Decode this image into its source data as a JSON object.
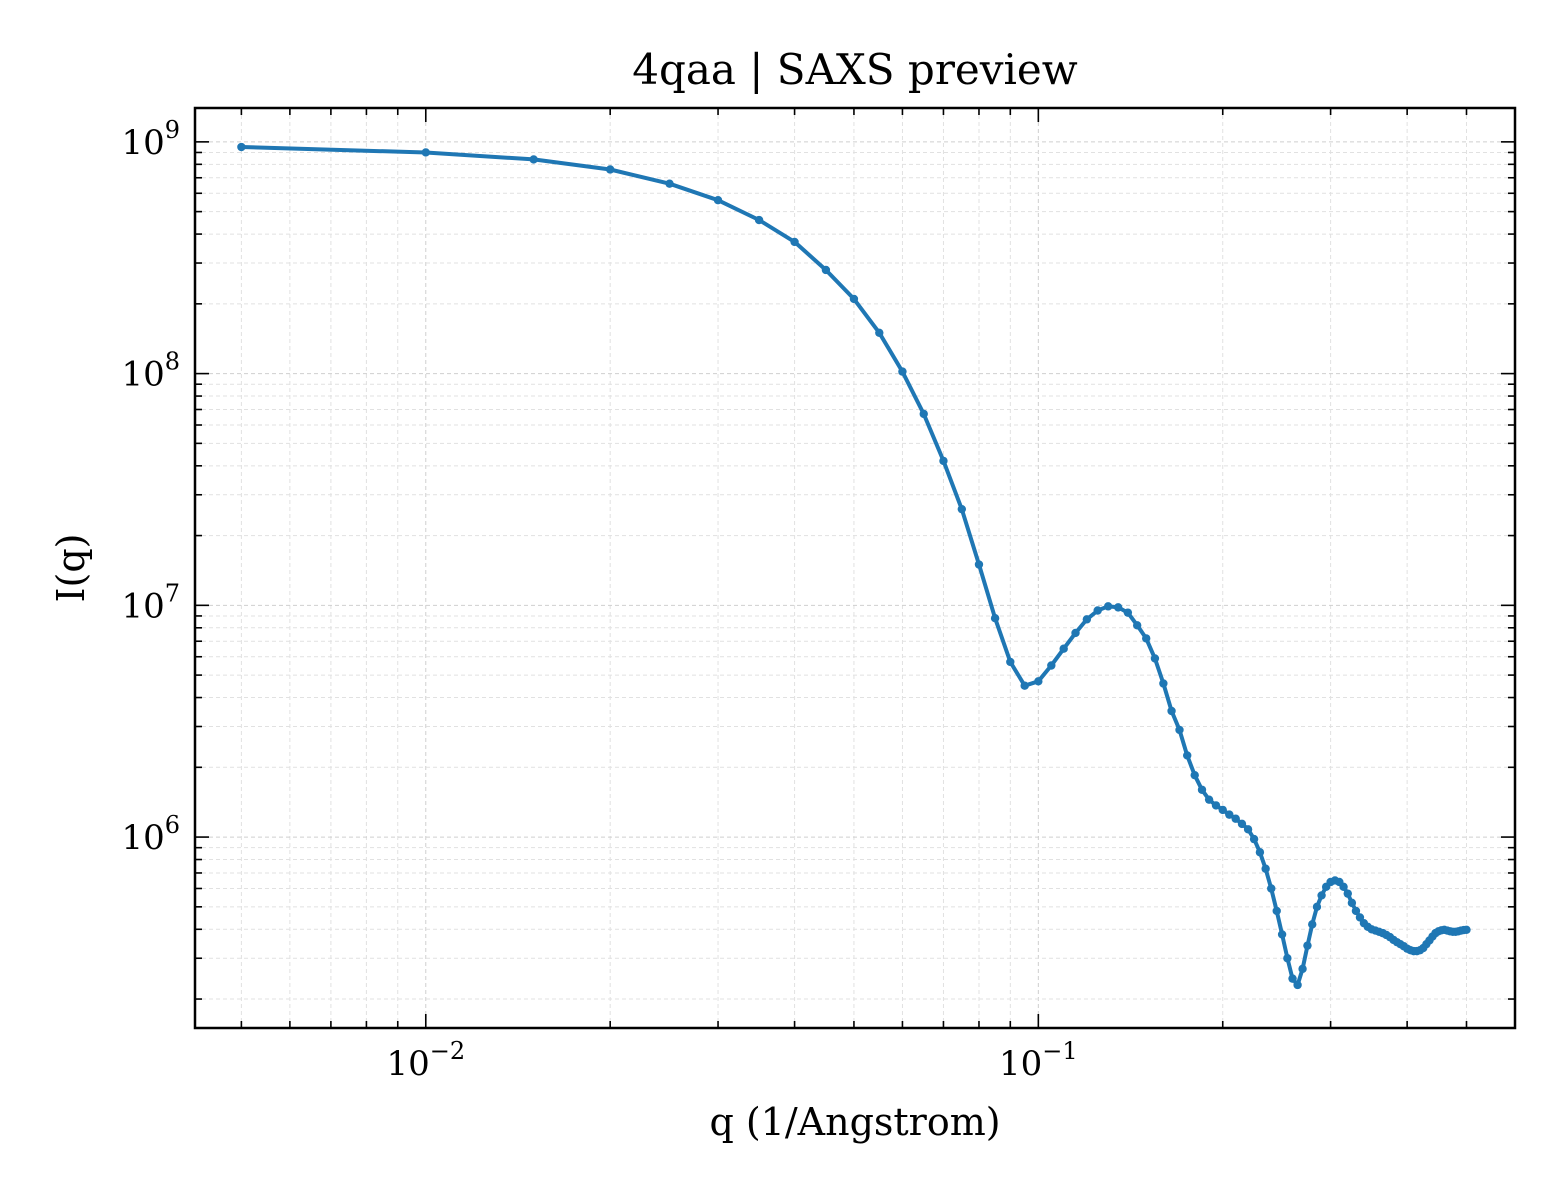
{
  "chart_data": {
    "type": "line",
    "title": "4qaa | SAXS preview",
    "xlabel": "q (1/Angstrom)",
    "ylabel": "I(q)",
    "xscale": "log",
    "yscale": "log",
    "xlim": [
      0.0042,
      0.6
    ],
    "ylim": [
      150000,
      1400000000
    ],
    "x_ticks": [
      {
        "value": 0.01,
        "base": "10",
        "exp": "−2"
      },
      {
        "value": 0.1,
        "base": "10",
        "exp": "−1"
      }
    ],
    "y_ticks": [
      {
        "value": 1000000,
        "base": "10",
        "exp": "6"
      },
      {
        "value": 10000000,
        "base": "10",
        "exp": "7"
      },
      {
        "value": 100000000,
        "base": "10",
        "exp": "8"
      },
      {
        "value": 1000000000,
        "base": "10",
        "exp": "9"
      }
    ],
    "grid": true,
    "line_color": "#1f77b4",
    "series": [
      {
        "x": [
          0.005,
          0.01,
          0.015,
          0.02,
          0.025,
          0.03,
          0.035,
          0.04,
          0.045,
          0.05,
          0.055,
          0.06,
          0.065,
          0.07,
          0.075,
          0.08,
          0.085,
          0.09,
          0.095,
          0.1,
          0.105,
          0.11,
          0.115,
          0.12,
          0.125,
          0.13,
          0.135,
          0.14,
          0.145,
          0.15,
          0.155,
          0.16,
          0.165,
          0.17,
          0.175,
          0.18,
          0.185,
          0.19,
          0.195,
          0.2,
          0.205,
          0.21,
          0.215,
          0.22,
          0.225,
          0.23,
          0.235,
          0.24,
          0.245,
          0.25,
          0.255,
          0.26,
          0.265,
          0.27,
          0.275,
          0.28,
          0.285,
          0.29,
          0.295,
          0.3,
          0.305,
          0.31,
          0.315,
          0.32,
          0.325,
          0.33,
          0.335,
          0.34,
          0.345,
          0.35,
          0.355,
          0.36,
          0.365,
          0.37,
          0.375,
          0.38,
          0.385,
          0.39,
          0.395,
          0.4,
          0.405,
          0.41,
          0.415,
          0.42,
          0.425,
          0.43,
          0.435,
          0.44,
          0.445,
          0.45,
          0.455,
          0.46,
          0.465,
          0.47,
          0.475,
          0.48,
          0.485,
          0.49,
          0.495,
          0.5
        ],
        "y": [
          950000000,
          900000000,
          840000000,
          760000000,
          660000000,
          560000000,
          460000000,
          370000000,
          280000000,
          210000000,
          150000000,
          102000000,
          67000000,
          42000000,
          26000000,
          15000000,
          8800000,
          5700000,
          4500000,
          4700000,
          5500000,
          6500000,
          7600000,
          8700000,
          9500000,
          9900000,
          9800000,
          9300000,
          8200000,
          7200000,
          5900000,
          4600000,
          3500000,
          2900000,
          2250000,
          1850000,
          1600000,
          1450000,
          1370000,
          1310000,
          1250000,
          1200000,
          1140000,
          1080000,
          980000,
          860000,
          730000,
          600000,
          480000,
          380000,
          300000,
          245000,
          230000,
          270000,
          340000,
          420000,
          500000,
          560000,
          610000,
          640000,
          650000,
          640000,
          610000,
          570000,
          520000,
          480000,
          450000,
          425000,
          410000,
          400000,
          395000,
          390000,
          385000,
          378000,
          370000,
          360000,
          352000,
          345000,
          338000,
          330000,
          325000,
          322000,
          322000,
          325000,
          332000,
          345000,
          358000,
          372000,
          385000,
          392000,
          396000,
          398000,
          395000,
          392000,
          390000,
          390000,
          392000,
          395000,
          397000,
          398000
        ]
      }
    ]
  }
}
